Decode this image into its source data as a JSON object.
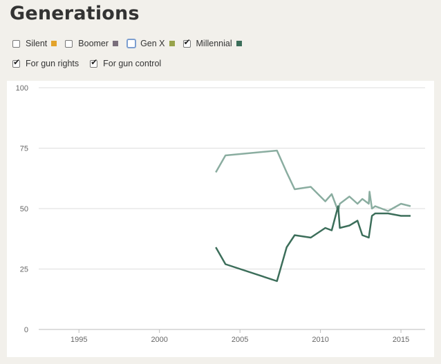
{
  "title": "Generations",
  "generation_options": [
    {
      "label": "Silent",
      "checked": false,
      "focused": false,
      "color": "#e3a32b"
    },
    {
      "label": "Boomer",
      "checked": false,
      "focused": false,
      "color": "#7a6e7b"
    },
    {
      "label": "Gen X",
      "checked": false,
      "focused": true,
      "color": "#98a34b"
    },
    {
      "label": "Millennial",
      "checked": true,
      "focused": false,
      "color": "#3c6e5a"
    }
  ],
  "stance_options": [
    {
      "label": "For gun rights",
      "checked": true
    },
    {
      "label": "For gun control",
      "checked": true
    }
  ],
  "colors": {
    "gun_rights_line": "#3c6e5a",
    "gun_control_line": "#8aada0",
    "grid": "#dddddd"
  },
  "chart_data": {
    "type": "line",
    "xlim": [
      1992.5,
      2016.5
    ],
    "ylim": [
      0,
      100
    ],
    "x_ticks": [
      1995,
      2000,
      2005,
      2010,
      2015
    ],
    "y_ticks": [
      0,
      25,
      50,
      75,
      100
    ],
    "grid": "horizontal",
    "series": [
      {
        "name": "For gun control",
        "points": [
          [
            2003.5,
            65
          ],
          [
            2004.1,
            72
          ],
          [
            2007.3,
            74
          ],
          [
            2007.9,
            65
          ],
          [
            2008.4,
            58
          ],
          [
            2009.4,
            59
          ],
          [
            2010.3,
            53
          ],
          [
            2010.7,
            56
          ],
          [
            2011.1,
            49
          ],
          [
            2011.2,
            52
          ],
          [
            2011.8,
            55
          ],
          [
            2012.3,
            52
          ],
          [
            2012.6,
            54
          ],
          [
            2013.0,
            52
          ],
          [
            2013.05,
            57
          ],
          [
            2013.2,
            50
          ],
          [
            2013.4,
            51
          ],
          [
            2014.2,
            49
          ],
          [
            2015.0,
            52
          ],
          [
            2015.6,
            51
          ]
        ]
      },
      {
        "name": "For gun rights",
        "points": [
          [
            2003.5,
            34
          ],
          [
            2004.1,
            27
          ],
          [
            2007.3,
            20
          ],
          [
            2007.9,
            34
          ],
          [
            2008.4,
            39
          ],
          [
            2009.4,
            38
          ],
          [
            2010.3,
            42
          ],
          [
            2010.7,
            41
          ],
          [
            2011.1,
            51
          ],
          [
            2011.2,
            42
          ],
          [
            2011.8,
            43
          ],
          [
            2012.3,
            45
          ],
          [
            2012.6,
            39
          ],
          [
            2013.0,
            38
          ],
          [
            2013.2,
            47
          ],
          [
            2013.4,
            48
          ],
          [
            2014.2,
            48
          ],
          [
            2015.0,
            47
          ],
          [
            2015.6,
            47
          ]
        ]
      }
    ]
  }
}
